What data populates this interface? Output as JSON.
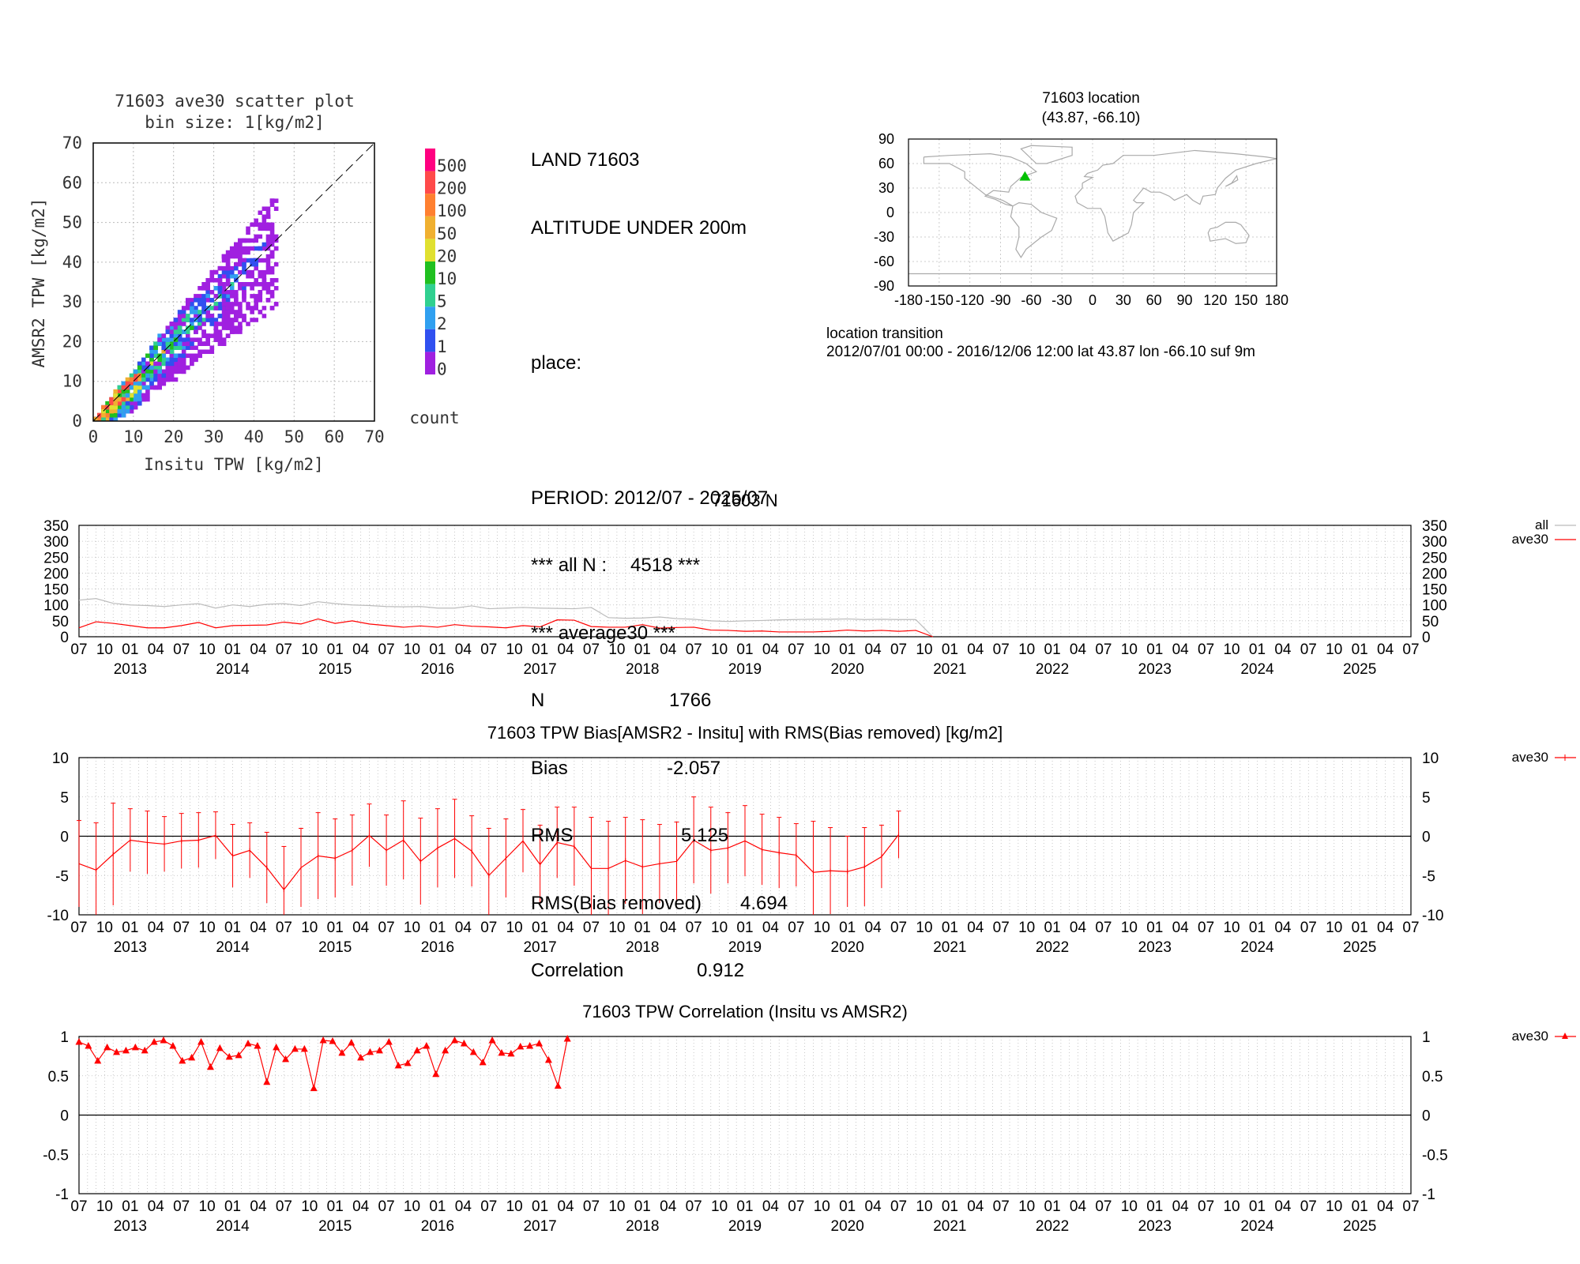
{
  "scatter": {
    "title_line1": "71603 ave30 scatter plot",
    "title_line2": "bin size: 1[kg/m2]",
    "xlabel": "Insitu TPW [kg/m2]",
    "ylabel": "AMSR2 TPW [kg/m2]",
    "ticks": [
      "0",
      "10",
      "20",
      "30",
      "40",
      "50",
      "60",
      "70"
    ],
    "colorbar_labels": [
      "500",
      "200",
      "100",
      "50",
      "20",
      "10",
      "5",
      "2",
      "1",
      "0"
    ],
    "colorbar_colors": [
      "#ff0080",
      "#ff4a4a",
      "#ff8030",
      "#f0b030",
      "#e0e030",
      "#20c020",
      "#30d090",
      "#30a0f0",
      "#3050f0",
      "#a020e0"
    ],
    "colorbar_title": "count"
  },
  "stats": {
    "line1": "LAND 71603",
    "line2": "ALTITUDE UNDER 200m",
    "place_label": "place:",
    "period": "PERIOD: 2012/07 - 2025/07",
    "all_n_label": "*** all N :",
    "all_n_value": "4518",
    "all_n_tail": "***",
    "average_label": "*** average30 ***",
    "n_label": "N",
    "n_value": "1766",
    "bias_label": "Bias",
    "bias_value": "-2.057",
    "rms_label": "RMS",
    "rms_value": "5.125",
    "rmsbr_label": "RMS(Bias removed)",
    "rmsbr_value": "4.694",
    "corr_label": "Correlation",
    "corr_value": "0.912"
  },
  "map": {
    "title_line1": "71603 location",
    "title_line2": "(43.87, -66.10)",
    "yticks": [
      "90",
      "60",
      "30",
      "0",
      "-30",
      "-60",
      "-90"
    ],
    "xticks": [
      "-180",
      "-150",
      "-120",
      "-90",
      "-60",
      "-30",
      "0",
      "30",
      "60",
      "90",
      "120",
      "150",
      "180"
    ],
    "marker_lat": 43.87,
    "marker_lon": -66.1,
    "marker_color": "#00c000",
    "transition_label": "location transition",
    "transition_text": "2012/07/01 00:00 - 2016/12/06 12:00 lat 43.87 lon -66.10 suf 9m"
  },
  "timeseries": {
    "month_labels": [
      "07",
      "10",
      "01",
      "04",
      "07",
      "10",
      "01",
      "04",
      "07",
      "10",
      "01",
      "04",
      "07",
      "10",
      "01",
      "04",
      "07",
      "10",
      "01",
      "04",
      "07",
      "10",
      "01",
      "04",
      "07",
      "10",
      "01",
      "04",
      "07",
      "10",
      "01",
      "04",
      "07",
      "10",
      "01",
      "04",
      "07",
      "10",
      "01",
      "04",
      "07",
      "10",
      "01",
      "04",
      "07",
      "10",
      "01",
      "04",
      "07",
      "10",
      "01",
      "04",
      "07"
    ],
    "years": [
      "2013",
      "2014",
      "2015",
      "2016",
      "2017",
      "2018",
      "2019",
      "2020",
      "2021",
      "2022",
      "2023",
      "2024",
      "2025"
    ]
  },
  "chart_data": [
    {
      "type": "heatmap",
      "title": "71603 ave30 scatter plot",
      "subtitle": "bin size: 1[kg/m2]",
      "xlabel": "Insitu TPW [kg/m2]",
      "ylabel": "AMSR2 TPW [kg/m2]",
      "xlim": [
        0,
        70
      ],
      "ylim": [
        0,
        70
      ],
      "grid": true,
      "colorbar_label": "count",
      "colorbar_levels": [
        0,
        1,
        2,
        5,
        10,
        20,
        50,
        100,
        200,
        500
      ]
    },
    {
      "type": "line",
      "title": "71603 N",
      "x_start": "2012/07",
      "x_end": "2025/07",
      "ylim": [
        0,
        350
      ],
      "yticks": [
        0,
        50,
        100,
        150,
        200,
        250,
        300,
        350
      ],
      "grid": true,
      "legend_position": "top-right",
      "series": [
        {
          "name": "all",
          "color": "#bbbbbb",
          "values": [
            115,
            120,
            105,
            100,
            98,
            95,
            100,
            104,
            90,
            100,
            95,
            102,
            104,
            98,
            110,
            104,
            100,
            98,
            95,
            94,
            95,
            90,
            90,
            97,
            88,
            90,
            92,
            90,
            89,
            88,
            92,
            60,
            58,
            59,
            62,
            57,
            55,
            50,
            48,
            50,
            51,
            53,
            54,
            55,
            55,
            56,
            54,
            55,
            54,
            54,
            0
          ]
        },
        {
          "name": "ave30",
          "color": "#ff0000",
          "values": [
            28,
            47,
            42,
            35,
            28,
            28,
            35,
            45,
            28,
            35,
            36,
            37,
            46,
            40,
            56,
            42,
            50,
            40,
            35,
            30,
            34,
            30,
            38,
            33,
            31,
            28,
            35,
            31,
            53,
            52,
            32,
            30,
            30,
            38,
            27,
            29,
            30,
            21,
            20,
            17,
            18,
            15,
            15,
            15,
            17,
            21,
            18,
            20,
            17,
            20,
            0
          ]
        }
      ]
    },
    {
      "type": "line",
      "title": "71603 TPW Bias[AMSR2 - Insitu] with RMS(Bias removed) [kg/m2]",
      "x_start": "2012/07",
      "x_end": "2025/07",
      "ylim": [
        -10,
        10
      ],
      "yticks": [
        -10,
        -5,
        0,
        5,
        10
      ],
      "grid": true,
      "legend_position": "top-right",
      "series": [
        {
          "name": "ave30",
          "color": "#ff0000",
          "values": [
            -3.5,
            -4.3,
            -2.3,
            -0.5,
            -0.8,
            -1.0,
            -0.6,
            -0.5,
            0.1,
            -2.5,
            -1.8,
            -4.0,
            -6.8,
            -4.0,
            -2.5,
            -2.8,
            -1.8,
            0.1,
            -1.8,
            -0.5,
            -3.2,
            -1.5,
            -0.3,
            -1.9,
            -5.0,
            -2.8,
            -0.6,
            -3.6,
            -0.8,
            -1.3,
            -4.1,
            -4.1,
            -3.1,
            -3.9,
            -3.5,
            -3.2,
            -0.5,
            -1.8,
            -1.5,
            -0.6,
            -1.7,
            -2.1,
            -2.4,
            -4.6,
            -4.4,
            -4.5,
            -3.9,
            -2.6,
            0.2
          ],
          "rms": [
            5.5,
            6.0,
            6.5,
            4.0,
            4.0,
            3.5,
            3.5,
            3.5,
            3.0,
            4.0,
            3.5,
            4.5,
            5.5,
            5.0,
            5.5,
            5.0,
            4.5,
            4.0,
            4.5,
            5.0,
            5.5,
            5.0,
            5.0,
            4.5,
            6.0,
            5.0,
            4.0,
            5.0,
            4.5,
            5.0,
            6.5,
            6.0,
            5.5,
            6.0,
            5.0,
            5.0,
            5.5,
            5.5,
            4.5,
            4.5,
            4.5,
            4.5,
            4.0,
            6.5,
            5.5,
            4.5,
            5.0,
            4.0,
            3.0
          ]
        }
      ]
    },
    {
      "type": "line",
      "title": "71603 TPW Correlation (Insitu vs AMSR2)",
      "x_start": "2012/07",
      "x_end": "2025/07",
      "ylim": [
        -1,
        1
      ],
      "yticks": [
        -1,
        -0.5,
        0,
        0.5,
        1
      ],
      "grid": true,
      "legend_position": "top-right",
      "series": [
        {
          "name": "ave30",
          "color": "#ff0000",
          "values": [
            0.93,
            0.88,
            0.69,
            0.86,
            0.8,
            0.82,
            0.86,
            0.82,
            0.93,
            0.95,
            0.88,
            0.69,
            0.73,
            0.93,
            0.61,
            0.85,
            0.74,
            0.76,
            0.91,
            0.88,
            0.42,
            0.86,
            0.71,
            0.84,
            0.84,
            0.34,
            0.95,
            0.94,
            0.79,
            0.92,
            0.73,
            0.8,
            0.82,
            0.93,
            0.63,
            0.66,
            0.82,
            0.88,
            0.52,
            0.82,
            0.95,
            0.91,
            0.8,
            0.67,
            0.95,
            0.79,
            0.78,
            0.87,
            0.88,
            0.91,
            0.7,
            0.37,
            0.97
          ]
        }
      ]
    }
  ]
}
